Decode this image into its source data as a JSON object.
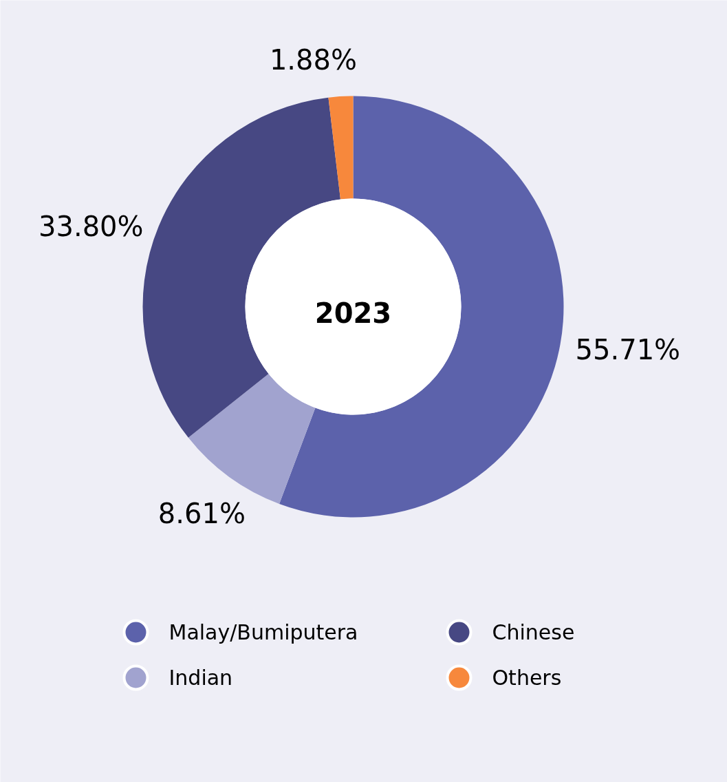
{
  "chart_data": {
    "type": "donut",
    "title": "2023",
    "categories": [
      "Malay/Bumiputera",
      "Indian",
      "Chinese",
      "Others"
    ],
    "values": [
      55.71,
      8.61,
      33.8,
      1.88
    ],
    "colors": [
      "#5c62ab",
      "#a1a3cf",
      "#474883",
      "#f7883c"
    ],
    "value_labels": [
      "55.71%",
      "8.61%",
      "33.80%",
      "1.88%"
    ],
    "legend": "bottom"
  }
}
